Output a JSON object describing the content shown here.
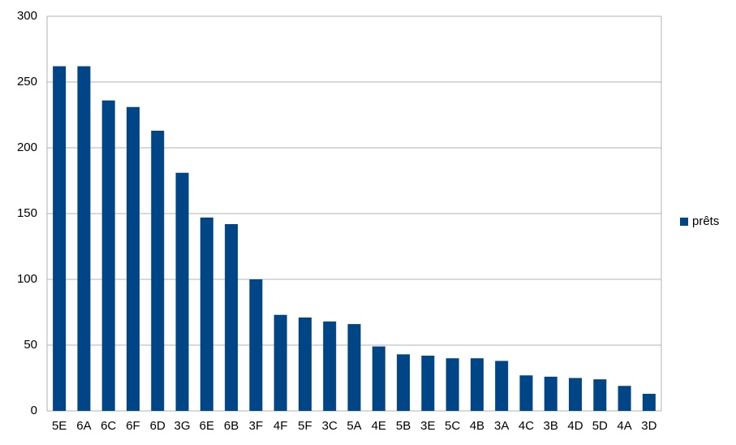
{
  "chart_data": {
    "type": "bar",
    "categories": [
      "5E",
      "6A",
      "6C",
      "6F",
      "6D",
      "3G",
      "6E",
      "6B",
      "3F",
      "4F",
      "5F",
      "3C",
      "5A",
      "4E",
      "5B",
      "3E",
      "5C",
      "4B",
      "3A",
      "4C",
      "3B",
      "4D",
      "5D",
      "4A",
      "3D"
    ],
    "series": [
      {
        "name": "prêts",
        "color": "#004586",
        "values": [
          262,
          262,
          236,
          231,
          213,
          181,
          147,
          142,
          100,
          73,
          71,
          68,
          66,
          49,
          43,
          42,
          40,
          40,
          38,
          27,
          26,
          25,
          24,
          19,
          13
        ]
      }
    ],
    "ylim": [
      0,
      300
    ],
    "yticks": [
      0,
      50,
      100,
      150,
      200,
      250,
      300
    ],
    "grid": true,
    "legend": "right"
  }
}
